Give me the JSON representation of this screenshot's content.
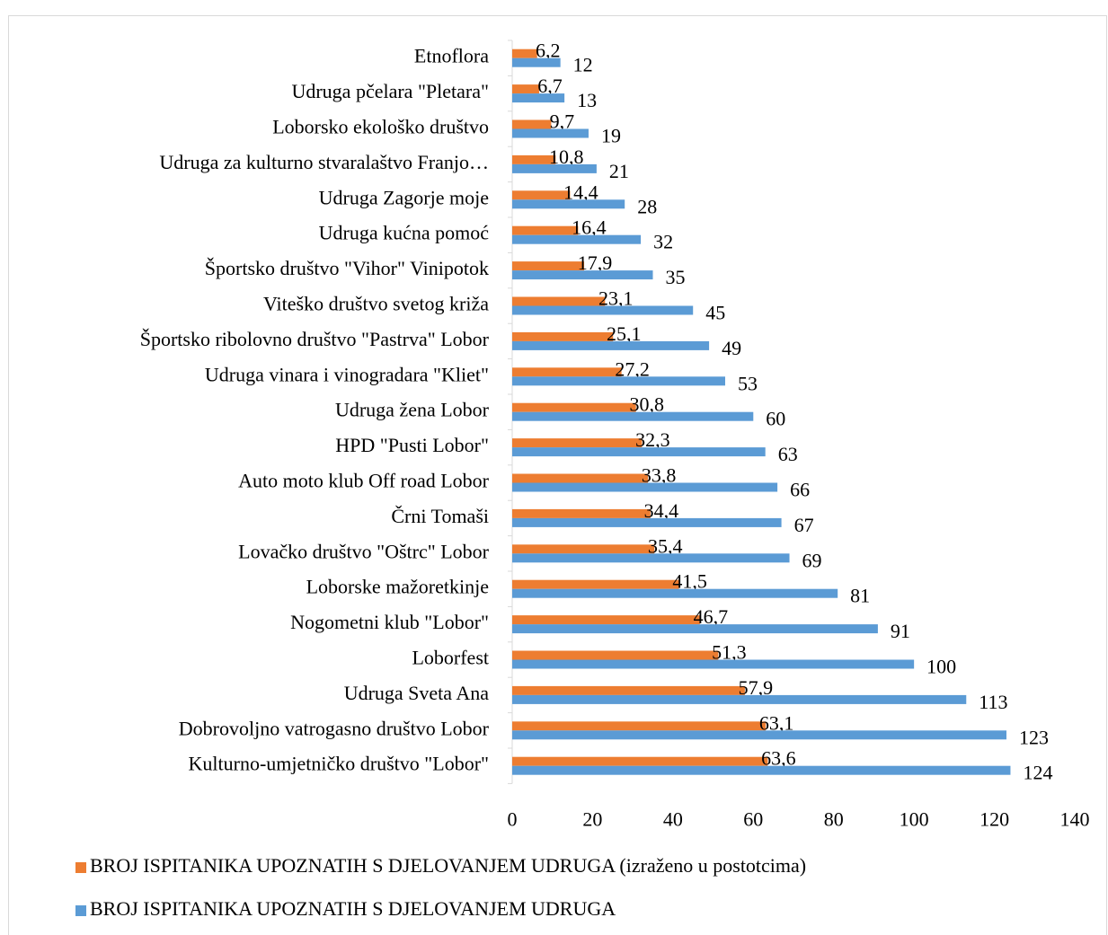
{
  "chart_data": {
    "type": "bar",
    "orientation": "horizontal",
    "categories": [
      "Etnoflora",
      "Udruga pčelara \"Pletara\"",
      "Loborsko ekološko društvo",
      "Udruga za kulturno stvaralaštvo Franjo…",
      "Udruga Zagorje moje",
      "Udruga kućna pomoć",
      "Športsko društvo \"Vihor\" Vinipotok",
      "Viteško društvo svetog križa",
      "Športsko ribolovno društvo \"Pastrva\" Lobor",
      "Udruga vinara i vinogradara \"Kliet\"",
      "Udruga žena Lobor",
      "HPD \"Pusti Lobor\"",
      "Auto moto klub Off road Lobor",
      "Črni Tomaši",
      "Lovačko društvo \"Oštrc\" Lobor",
      "Loborske mažoretkinje",
      "Nogometni klub \"Lobor\"",
      "Loborfest",
      "Udruga Sveta Ana",
      "Dobrovoljno vatrogasno društvo Lobor",
      "Kulturno-umjetničko društvo \"Lobor\""
    ],
    "series": [
      {
        "name": "BROJ ISPITANIKA UPOZNATIH S DJELOVANJEM UDRUGA (izraženo u postotcima)",
        "color": "#ed7d31",
        "values": [
          6.2,
          6.7,
          9.7,
          10.8,
          14.4,
          16.4,
          17.9,
          23.1,
          25.1,
          27.2,
          30.8,
          32.3,
          33.8,
          34.4,
          35.4,
          41.5,
          46.7,
          51.3,
          57.9,
          63.1,
          63.6
        ],
        "value_labels": [
          "6,2",
          "6,7",
          "9,7",
          "10,8",
          "14,4",
          "16,4",
          "17,9",
          "23,1",
          "25,1",
          "27,2",
          "30,8",
          "32,3",
          "33,8",
          "34,4",
          "35,4",
          "41,5",
          "46,7",
          "51,3",
          "57,9",
          "63,1",
          "63,6"
        ]
      },
      {
        "name": "BROJ ISPITANIKA UPOZNATIH S DJELOVANJEM UDRUGA",
        "color": "#5b9bd5",
        "values": [
          12,
          13,
          19,
          21,
          28,
          32,
          35,
          45,
          49,
          53,
          60,
          63,
          66,
          67,
          69,
          81,
          91,
          100,
          113,
          123,
          124
        ]
      }
    ],
    "xlim": [
      0,
      140
    ],
    "xticks": [
      0,
      20,
      40,
      60,
      80,
      100,
      120,
      140
    ],
    "grid": false,
    "legend": "bottom"
  }
}
